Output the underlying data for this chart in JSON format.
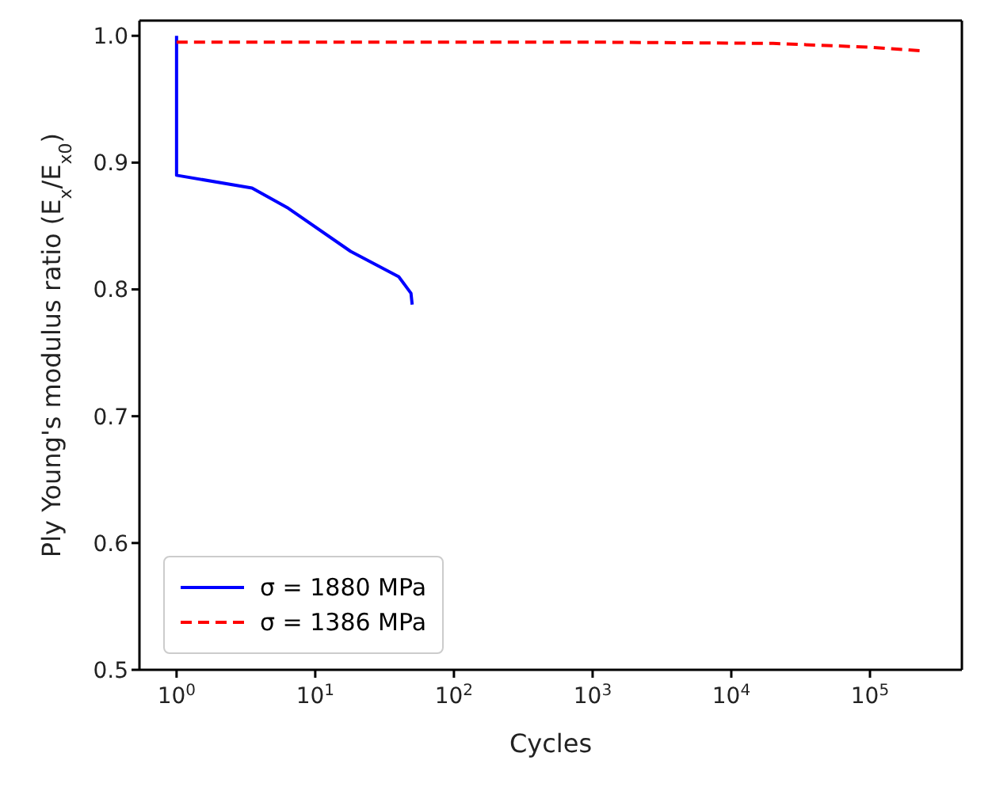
{
  "chart_data": {
    "type": "line",
    "xlabel": "Cycles",
    "ylabel": "Ply Young's modulus ratio (E$_{x}$/E$_{x0}$)",
    "log": "x",
    "xlim": [
      0.54,
      460000
    ],
    "xticks": [
      {
        "value": 1,
        "label": "10$^{0}$"
      },
      {
        "value": 10,
        "label": "10$^{1}$"
      },
      {
        "value": 100,
        "label": "10$^{2}$"
      },
      {
        "value": 1000,
        "label": "10$^{3}$"
      },
      {
        "value": 10000,
        "label": "10$^{4}$"
      },
      {
        "value": 100000,
        "label": "10$^{5}$"
      }
    ],
    "ylim": [
      0.5,
      1.012
    ],
    "yticks": [
      0.5,
      0.6,
      0.7,
      0.8,
      0.9,
      {
        "value": 1,
        "label": "1.0"
      }
    ],
    "legend": "bottom left",
    "series": [
      {
        "name": "σ = 1880 MPa",
        "color": "#0000ff",
        "line_style": "solid",
        "x": [
          1,
          1,
          3.5,
          6.4,
          18,
          40,
          49,
          50
        ],
        "values": [
          1.0,
          0.89,
          0.88,
          0.864,
          0.83,
          0.81,
          0.797,
          0.788
        ]
      },
      {
        "name": "σ = 1386 MPa",
        "color": "#ff0000",
        "line_style": "dashed",
        "x": [
          1,
          1000,
          20000,
          100000,
          250000
        ],
        "values": [
          0.995,
          0.995,
          0.994,
          0.991,
          0.988
        ]
      }
    ]
  }
}
